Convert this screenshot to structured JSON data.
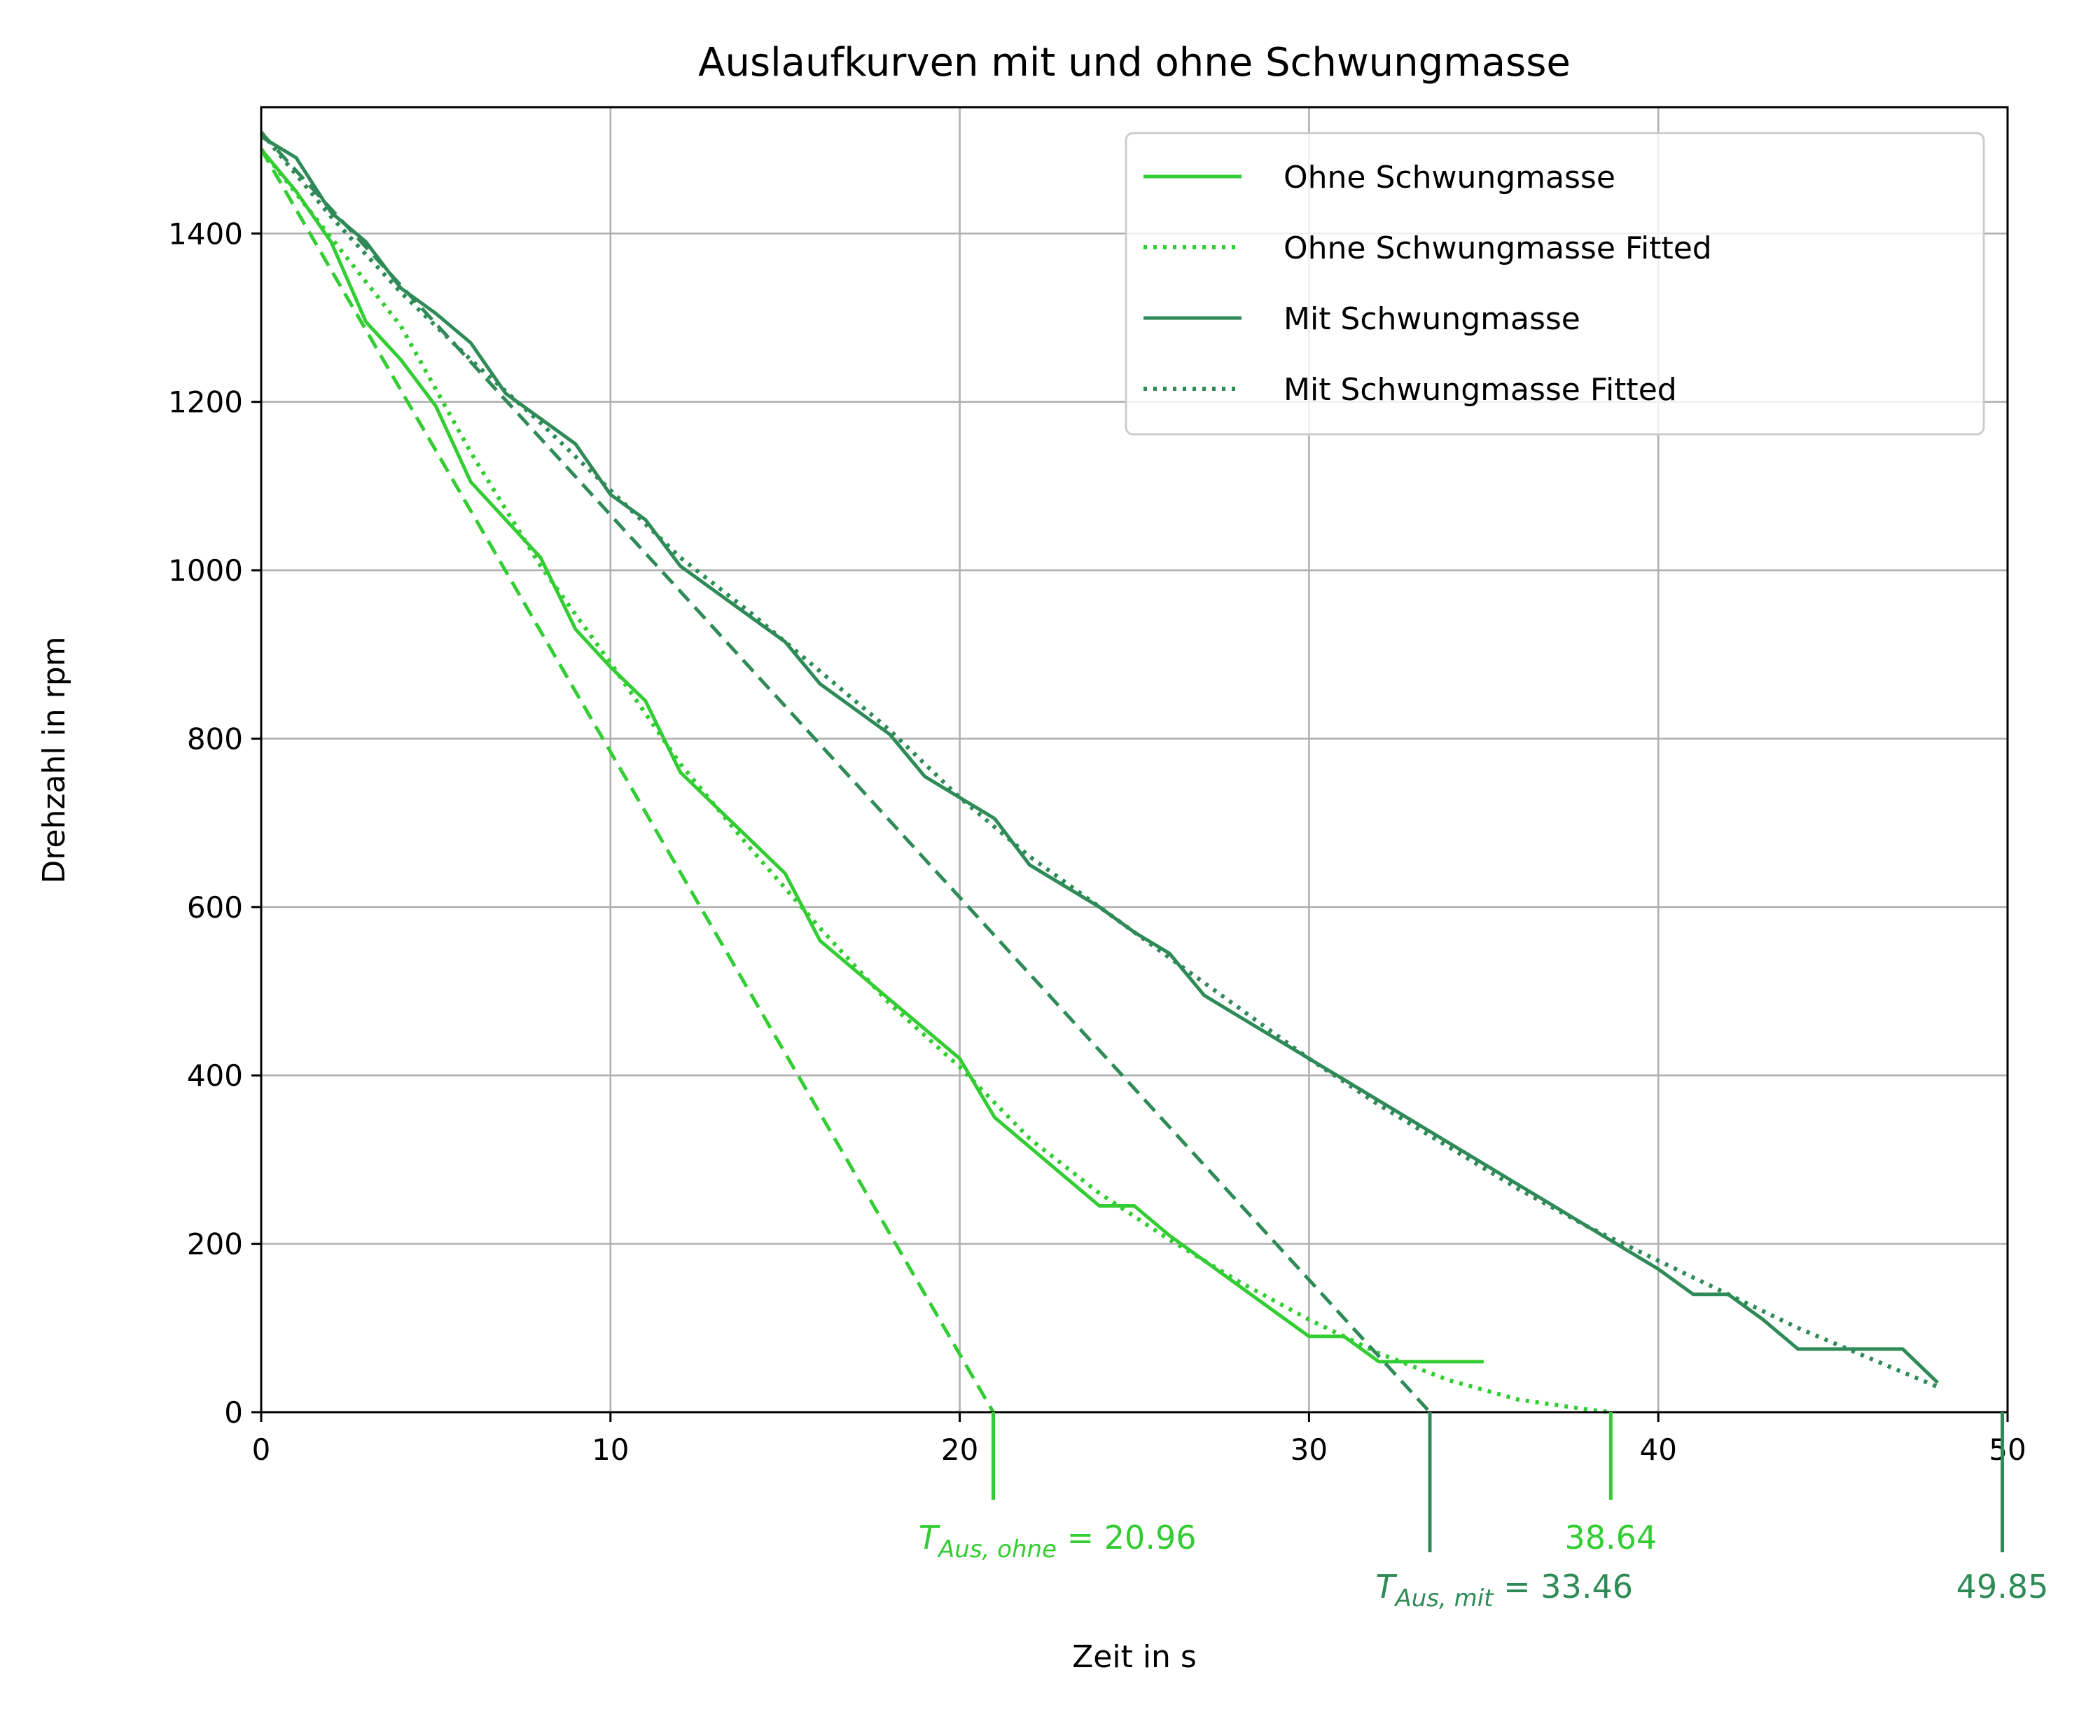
{
  "chart_data": {
    "type": "line",
    "title": "Auslaufkurven mit und ohne Schwungmasse",
    "xlabel": "Zeit in s",
    "ylabel": "Drehzahl in rpm",
    "xlim": [
      0,
      50
    ],
    "ylim": [
      0,
      1550
    ],
    "xticks": [
      0,
      10,
      20,
      30,
      40,
      50
    ],
    "yticks": [
      0,
      200,
      400,
      600,
      800,
      1000,
      1200,
      1400
    ],
    "grid": true,
    "legend_position": "top-right",
    "colors": {
      "ohne": "#32cd32",
      "mit": "#2e8b57"
    },
    "series": [
      {
        "name": "Ohne Schwungmasse",
        "style": "solid",
        "color": "#32cd32",
        "x": [
          0,
          1,
          2,
          3,
          4,
          5,
          6,
          7,
          8,
          9,
          10,
          11,
          12,
          13,
          14,
          15,
          16,
          17,
          18,
          19,
          20,
          21,
          22,
          23,
          24,
          25,
          26,
          27,
          28,
          29,
          30,
          31,
          32,
          33,
          34,
          35
        ],
        "y": [
          1500,
          1450,
          1390,
          1295,
          1250,
          1195,
          1105,
          1060,
          1015,
          930,
          885,
          845,
          760,
          720,
          680,
          640,
          560,
          525,
          490,
          455,
          420,
          350,
          315,
          280,
          245,
          245,
          210,
          180,
          150,
          120,
          90,
          90,
          60,
          60,
          60,
          60
        ]
      },
      {
        "name": "Ohne Schwungmasse Fitted",
        "style": "dotted",
        "color": "#32cd32",
        "x": [
          0,
          2,
          4,
          6,
          8,
          10,
          12,
          14,
          16,
          18,
          20,
          22,
          24,
          26,
          28,
          30,
          32,
          34,
          36,
          38,
          38.64
        ],
        "y": [
          1500,
          1395,
          1290,
          1140,
          1005,
          890,
          770,
          670,
          575,
          485,
          410,
          325,
          260,
          205,
          155,
          110,
          70,
          38,
          15,
          3,
          0
        ]
      },
      {
        "name": "",
        "style": "dashed",
        "color": "#32cd32",
        "x": [
          0,
          20.96
        ],
        "y": [
          1500,
          0
        ]
      },
      {
        "name": "Mit Schwungmasse",
        "style": "solid",
        "color": "#2e8b57",
        "x": [
          0,
          1,
          2,
          3,
          4,
          5,
          6,
          7,
          8,
          9,
          10,
          11,
          12,
          13,
          14,
          15,
          16,
          17,
          18,
          19,
          20,
          21,
          22,
          23,
          24,
          25,
          26,
          27,
          28,
          29,
          30,
          31,
          32,
          33,
          34,
          35,
          36,
          37,
          38,
          39,
          40,
          41,
          42,
          43,
          44,
          45,
          46,
          47,
          48
        ],
        "y": [
          1515,
          1490,
          1425,
          1390,
          1335,
          1305,
          1270,
          1210,
          1180,
          1150,
          1090,
          1060,
          1005,
          975,
          945,
          915,
          865,
          835,
          805,
          755,
          730,
          705,
          650,
          625,
          600,
          570,
          545,
          495,
          470,
          445,
          420,
          395,
          370,
          345,
          320,
          295,
          270,
          245,
          220,
          195,
          170,
          140,
          140,
          110,
          75,
          75,
          75,
          75,
          35
        ]
      },
      {
        "name": "Mit Schwungmasse Fitted",
        "style": "dotted",
        "color": "#2e8b57",
        "x": [
          0,
          2,
          4,
          6,
          8,
          10,
          12,
          14,
          16,
          18,
          20,
          22,
          24,
          26,
          28,
          30,
          32,
          34,
          36,
          38,
          40,
          42,
          44,
          46,
          48
        ],
        "y": [
          1520,
          1420,
          1330,
          1250,
          1175,
          1095,
          1015,
          950,
          880,
          810,
          730,
          660,
          600,
          540,
          480,
          420,
          365,
          315,
          265,
          220,
          180,
          140,
          100,
          65,
          30
        ]
      },
      {
        "name": "",
        "style": "dashed",
        "color": "#2e8b57",
        "x": [
          0,
          33.46
        ],
        "y": [
          1520,
          0
        ]
      }
    ],
    "annotations": [
      {
        "x": 20.96,
        "label": "T_{Aus,ohne} = 20.96",
        "math_base": "T",
        "math_sub": "Aus, ohne",
        "math_rest": "= 20.96",
        "color": "#32cd32",
        "tick_len": 1,
        "text_row": 1
      },
      {
        "x": 33.46,
        "label": "T_{Aus,mit} = 33.46",
        "math_base": "T",
        "math_sub": "Aus, mit",
        "math_rest": "= 33.46",
        "color": "#2e8b57",
        "tick_len": 2,
        "text_row": 2
      },
      {
        "x": 38.64,
        "label": "38.64",
        "color": "#32cd32",
        "tick_len": 1,
        "text_row": 1
      },
      {
        "x": 49.85,
        "label": "49.85",
        "color": "#2e8b57",
        "tick_len": 2,
        "text_row": 2
      }
    ]
  }
}
